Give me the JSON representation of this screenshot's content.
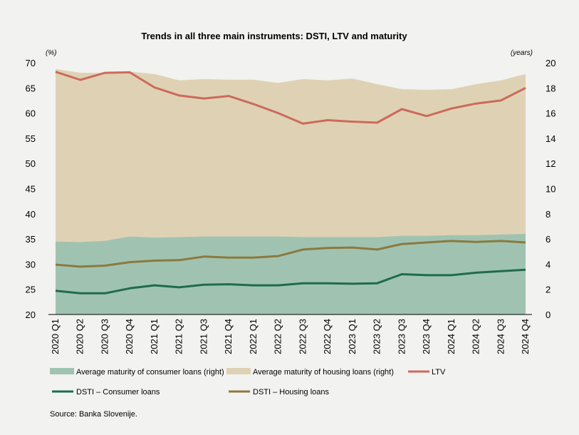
{
  "chart_data": {
    "type": "area+line",
    "title": "Trends in all three main instruments: DSTI, LTV and maturity",
    "left_unit": "(%)",
    "right_unit": "(years)",
    "ylim_left": [
      20,
      70
    ],
    "ylim_right": [
      0,
      20
    ],
    "yticks_left": [
      "20",
      "25",
      "30",
      "35",
      "40",
      "45",
      "50",
      "55",
      "60",
      "65",
      "70"
    ],
    "yticks_right": [
      "0",
      "2",
      "4",
      "6",
      "8",
      "10",
      "12",
      "14",
      "16",
      "18",
      "20"
    ],
    "categories": [
      "2020 Q1",
      "2020 Q2",
      "2020 Q3",
      "2020 Q4",
      "2021 Q1",
      "2021 Q2",
      "2021 Q3",
      "2021 Q4",
      "2022 Q1",
      "2022 Q2",
      "2022 Q3",
      "2022 Q4",
      "2023 Q1",
      "2023 Q2",
      "2023 Q3",
      "2023 Q4",
      "2024 Q1",
      "2024 Q2",
      "2024 Q3",
      "2024 Q4"
    ],
    "series": [
      {
        "name": "Average maturity of consumer loans (right)",
        "kind": "area",
        "axis": "right",
        "color": "#a0c3b1",
        "values": [
          5.8,
          5.75,
          5.85,
          6.2,
          6.1,
          6.15,
          6.2,
          6.2,
          6.2,
          6.2,
          6.15,
          6.15,
          6.15,
          6.15,
          6.25,
          6.25,
          6.3,
          6.3,
          6.35,
          6.4
        ]
      },
      {
        "name": "Average maturity of housing loans (right)",
        "kind": "area",
        "axis": "right",
        "color": "#dfd2b4",
        "values": [
          19.5,
          19.2,
          19.2,
          19.3,
          19.1,
          18.6,
          18.7,
          18.65,
          18.65,
          18.4,
          18.7,
          18.6,
          18.75,
          18.3,
          17.9,
          17.85,
          17.9,
          18.3,
          18.6,
          19.1
        ]
      },
      {
        "name": "LTV",
        "kind": "line",
        "axis": "left",
        "color": "#cc6a5c",
        "values": [
          68.2,
          66.6,
          68.0,
          68.1,
          65.1,
          63.5,
          62.9,
          63.4,
          61.8,
          60.0,
          57.9,
          58.6,
          58.3,
          58.1,
          60.8,
          59.4,
          60.9,
          61.9,
          62.5,
          65.0
        ]
      },
      {
        "name": "DSTI – Consumer loans",
        "kind": "line",
        "axis": "left",
        "color": "#1f6b4c",
        "values": [
          24.7,
          24.2,
          24.2,
          25.2,
          25.8,
          25.4,
          25.9,
          26.0,
          25.8,
          25.8,
          26.2,
          26.2,
          26.1,
          26.2,
          28.0,
          27.8,
          27.8,
          28.3,
          28.6,
          28.9
        ]
      },
      {
        "name": "DSTI – Housing loans",
        "kind": "line",
        "axis": "left",
        "color": "#8a7a3e",
        "values": [
          29.9,
          29.5,
          29.7,
          30.4,
          30.7,
          30.8,
          31.5,
          31.3,
          31.3,
          31.6,
          32.9,
          33.2,
          33.3,
          32.9,
          34.0,
          34.3,
          34.6,
          34.4,
          34.6,
          34.3
        ]
      }
    ]
  },
  "source": "Source: Banka Slovenije."
}
